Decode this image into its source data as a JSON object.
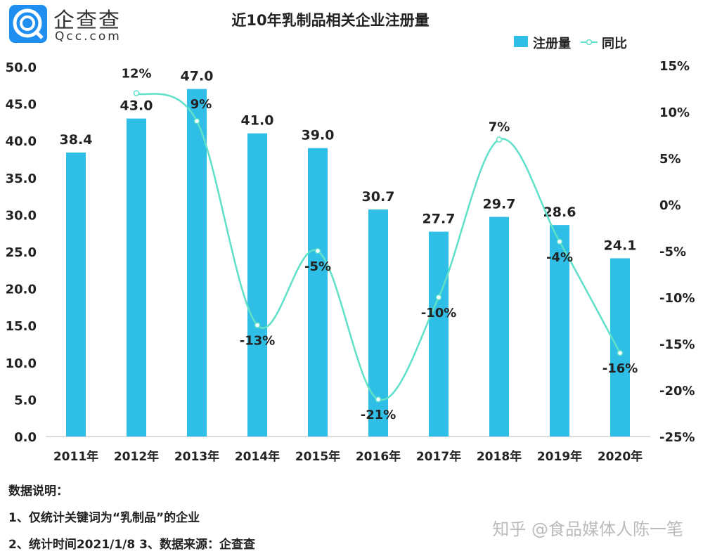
{
  "logo": {
    "name": "企查查",
    "sub": "Qcc.com",
    "color": "#1e8ff0"
  },
  "chart_data": {
    "type": "bar+line",
    "title": "近10年乳制品相关企业注册量",
    "categories": [
      "2011年",
      "2012年",
      "2013年",
      "2014年",
      "2015年",
      "2016年",
      "2017年",
      "2018年",
      "2019年",
      "2020年"
    ],
    "series": [
      {
        "name": "注册量",
        "type": "bar",
        "axis": "left",
        "color": "#2fbfe6",
        "values": [
          38.4,
          43.0,
          47.0,
          41.0,
          39.0,
          30.7,
          27.7,
          29.7,
          28.6,
          24.1
        ],
        "labels": [
          "38.4",
          "43.0",
          "47.0",
          "41.0",
          "39.0",
          "30.7",
          "27.7",
          "29.7",
          "28.6",
          "24.1"
        ]
      },
      {
        "name": "同比",
        "type": "line",
        "axis": "right",
        "color": "#5fe0c8",
        "values": [
          null,
          12,
          9,
          -13,
          -5,
          -21,
          -10,
          7,
          -4,
          -16
        ],
        "labels": [
          "",
          "12%",
          "9%",
          "-13%",
          "-5%",
          "-21%",
          "-10%",
          "7%",
          "-4%",
          "-16%"
        ]
      }
    ],
    "y_left": {
      "range": [
        0,
        50
      ],
      "ticks": [
        "0.0",
        "5.0",
        "10.0",
        "15.0",
        "20.0",
        "25.0",
        "30.0",
        "35.0",
        "40.0",
        "45.0",
        "50.0"
      ]
    },
    "y_right": {
      "range": [
        -25,
        15
      ],
      "ticks": [
        "-25%",
        "-20%",
        "-15%",
        "-10%",
        "-5%",
        "0%",
        "5%",
        "10%",
        "15%"
      ]
    },
    "legend": "top-right",
    "grid": false
  },
  "notes": {
    "heading": "数据说明：",
    "line1": "1、仅统计关键词为“乳制品”的企业",
    "line2": "2、统计时间2021/1/8  3、数据来源：企查查"
  },
  "watermark": "知乎 @食品媒体人陈一笔"
}
